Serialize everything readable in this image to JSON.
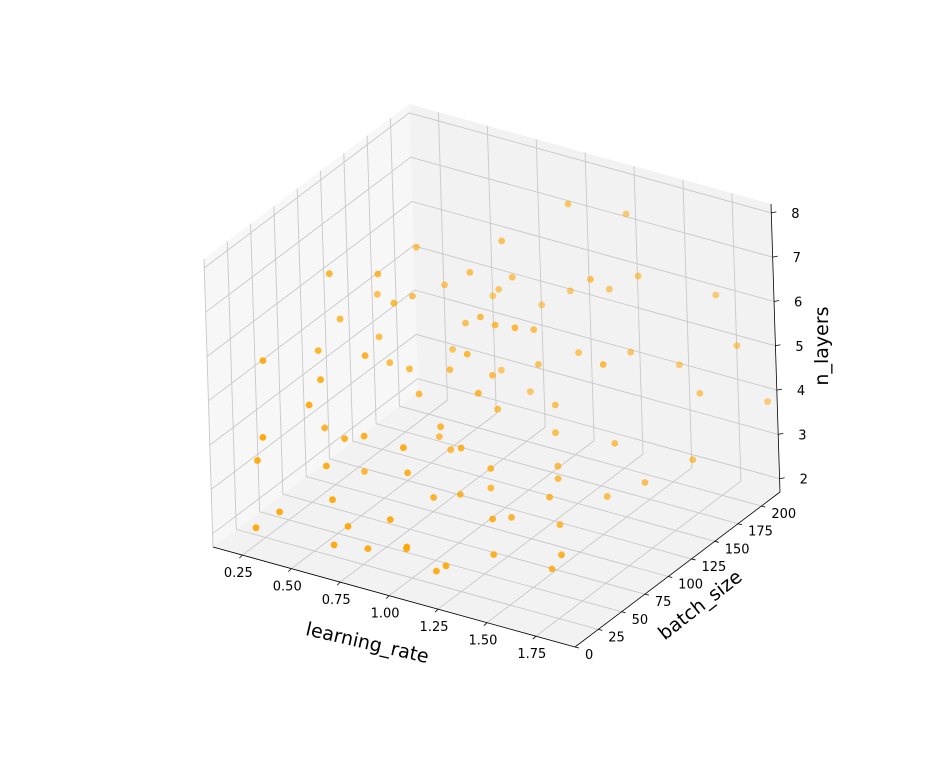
{
  "chart_data": {
    "type": "scatter",
    "projection": "3d",
    "title": "",
    "xlabel": "learning_rate",
    "ylabel": "batch_size",
    "zlabel": "n_layers",
    "xlim": [
      0.1,
      1.95
    ],
    "ylim": [
      0,
      220
    ],
    "zlim": [
      1.7,
      8.2
    ],
    "x_ticks": [
      0.25,
      0.5,
      0.75,
      1.0,
      1.25,
      1.5,
      1.75
    ],
    "x_tick_labels": [
      "0.25",
      "0.50",
      "0.75",
      "1.00",
      "1.25",
      "1.50",
      "1.75"
    ],
    "y_ticks": [
      0,
      25,
      50,
      75,
      100,
      125,
      150,
      175,
      200
    ],
    "y_tick_labels": [
      "0",
      "25",
      "50",
      "75",
      "100",
      "125",
      "150",
      "175",
      "200"
    ],
    "z_ticks": [
      2,
      3,
      4,
      5,
      6,
      7,
      8
    ],
    "z_tick_labels": [
      "2",
      "3",
      "4",
      "5",
      "6",
      "7",
      "8"
    ],
    "grid": true,
    "marker_color": "#FFA500",
    "series": [
      {
        "points": [
          [
            0.24,
            30,
            5.6
          ],
          [
            0.33,
            70,
            5.3
          ],
          [
            0.46,
            45,
            5.2
          ],
          [
            0.41,
            160,
            6.3
          ],
          [
            0.58,
            100,
            6.2
          ],
          [
            0.7,
            150,
            5.1
          ],
          [
            0.52,
            20,
            5.1
          ],
          [
            0.35,
            5,
            4.4
          ],
          [
            0.22,
            25,
            3.4
          ],
          [
            0.5,
            110,
            4.6
          ],
          [
            0.4,
            60,
            3.8
          ],
          [
            0.7,
            40,
            4.3
          ],
          [
            0.55,
            30,
            3.6
          ],
          [
            0.4,
            10,
            2.7
          ],
          [
            0.3,
            5,
            2.3
          ],
          [
            0.65,
            15,
            3.2
          ],
          [
            0.85,
            90,
            3.9
          ],
          [
            1.0,
            120,
            4.0
          ],
          [
            1.15,
            150,
            3.8
          ],
          [
            0.95,
            60,
            2.9
          ],
          [
            1.05,
            100,
            2.6
          ],
          [
            1.25,
            80,
            2.5
          ],
          [
            0.8,
            20,
            2.2
          ],
          [
            0.75,
            10,
            2.8
          ],
          [
            0.7,
            5,
            2.4
          ],
          [
            0.9,
            40,
            2.0
          ],
          [
            1.1,
            30,
            1.9
          ],
          [
            1.3,
            50,
            2.2
          ],
          [
            1.5,
            70,
            1.8
          ],
          [
            1.6,
            150,
            2.6
          ],
          [
            1.7,
            190,
            4.1
          ],
          [
            1.8,
            160,
            3.2
          ],
          [
            1.85,
            200,
            5.2
          ],
          [
            1.95,
            210,
            3.9
          ],
          [
            1.6,
            110,
            5.9
          ],
          [
            1.4,
            140,
            7.1
          ],
          [
            1.1,
            180,
            7.8
          ],
          [
            0.9,
            150,
            7.2
          ],
          [
            1.0,
            120,
            5.9
          ],
          [
            1.2,
            100,
            6.4
          ],
          [
            1.3,
            200,
            7.5
          ],
          [
            1.45,
            180,
            6.6
          ],
          [
            0.6,
            80,
            7.2
          ],
          [
            0.35,
            80,
            6.9
          ],
          [
            0.78,
            140,
            6.5
          ],
          [
            0.85,
            170,
            6.0
          ],
          [
            0.95,
            100,
            5.5
          ],
          [
            1.05,
            90,
            4.9
          ],
          [
            0.62,
            60,
            5.7
          ],
          [
            0.95,
            30,
            4.5
          ],
          [
            1.1,
            60,
            4.2
          ],
          [
            1.2,
            70,
            3.7
          ],
          [
            1.35,
            110,
            3.3
          ],
          [
            1.3,
            50,
            3.0
          ],
          [
            1.45,
            80,
            3.2
          ],
          [
            0.55,
            50,
            3.9
          ],
          [
            0.65,
            100,
            4.8
          ],
          [
            0.76,
            120,
            4.6
          ],
          [
            0.88,
            140,
            4.3
          ],
          [
            1.02,
            160,
            4.4
          ],
          [
            1.18,
            170,
            4.7
          ],
          [
            1.35,
            190,
            4.6
          ],
          [
            1.55,
            200,
            4.4
          ],
          [
            1.7,
            210,
            6.0
          ],
          [
            0.48,
            140,
            5.6
          ],
          [
            0.58,
            160,
            4.2
          ],
          [
            0.73,
            180,
            3.6
          ],
          [
            0.82,
            60,
            3.3
          ],
          [
            0.92,
            20,
            3.0
          ],
          [
            1.05,
            10,
            2.7
          ],
          [
            1.2,
            20,
            2.3
          ],
          [
            0.99,
            80,
            2.7
          ],
          [
            1.3,
            120,
            2.8
          ],
          [
            1.45,
            150,
            3.3
          ],
          [
            1.4,
            100,
            2.2
          ],
          [
            0.4,
            120,
            4.9
          ],
          [
            0.5,
            170,
            5.4
          ],
          [
            0.68,
            190,
            5.2
          ],
          [
            0.3,
            100,
            5.5
          ],
          [
            0.85,
            200,
            4.9
          ],
          [
            1.0,
            200,
            5.4
          ],
          [
            0.6,
            200,
            4.8
          ],
          [
            1.25,
            190,
            5.9
          ],
          [
            1.1,
            140,
            5.6
          ],
          [
            1.55,
            120,
            2.7
          ],
          [
            1.6,
            60,
            2.4
          ],
          [
            0.8,
            110,
            3.0
          ],
          [
            0.45,
            90,
            2.4
          ],
          [
            0.67,
            125,
            2.9
          ],
          [
            0.9,
            175,
            3.4
          ],
          [
            0.25,
            150,
            5.2
          ],
          [
            0.95,
            115,
            6.1
          ],
          [
            0.72,
            95,
            4.4
          ],
          [
            1.22,
            135,
            3.5
          ]
        ]
      }
    ]
  }
}
